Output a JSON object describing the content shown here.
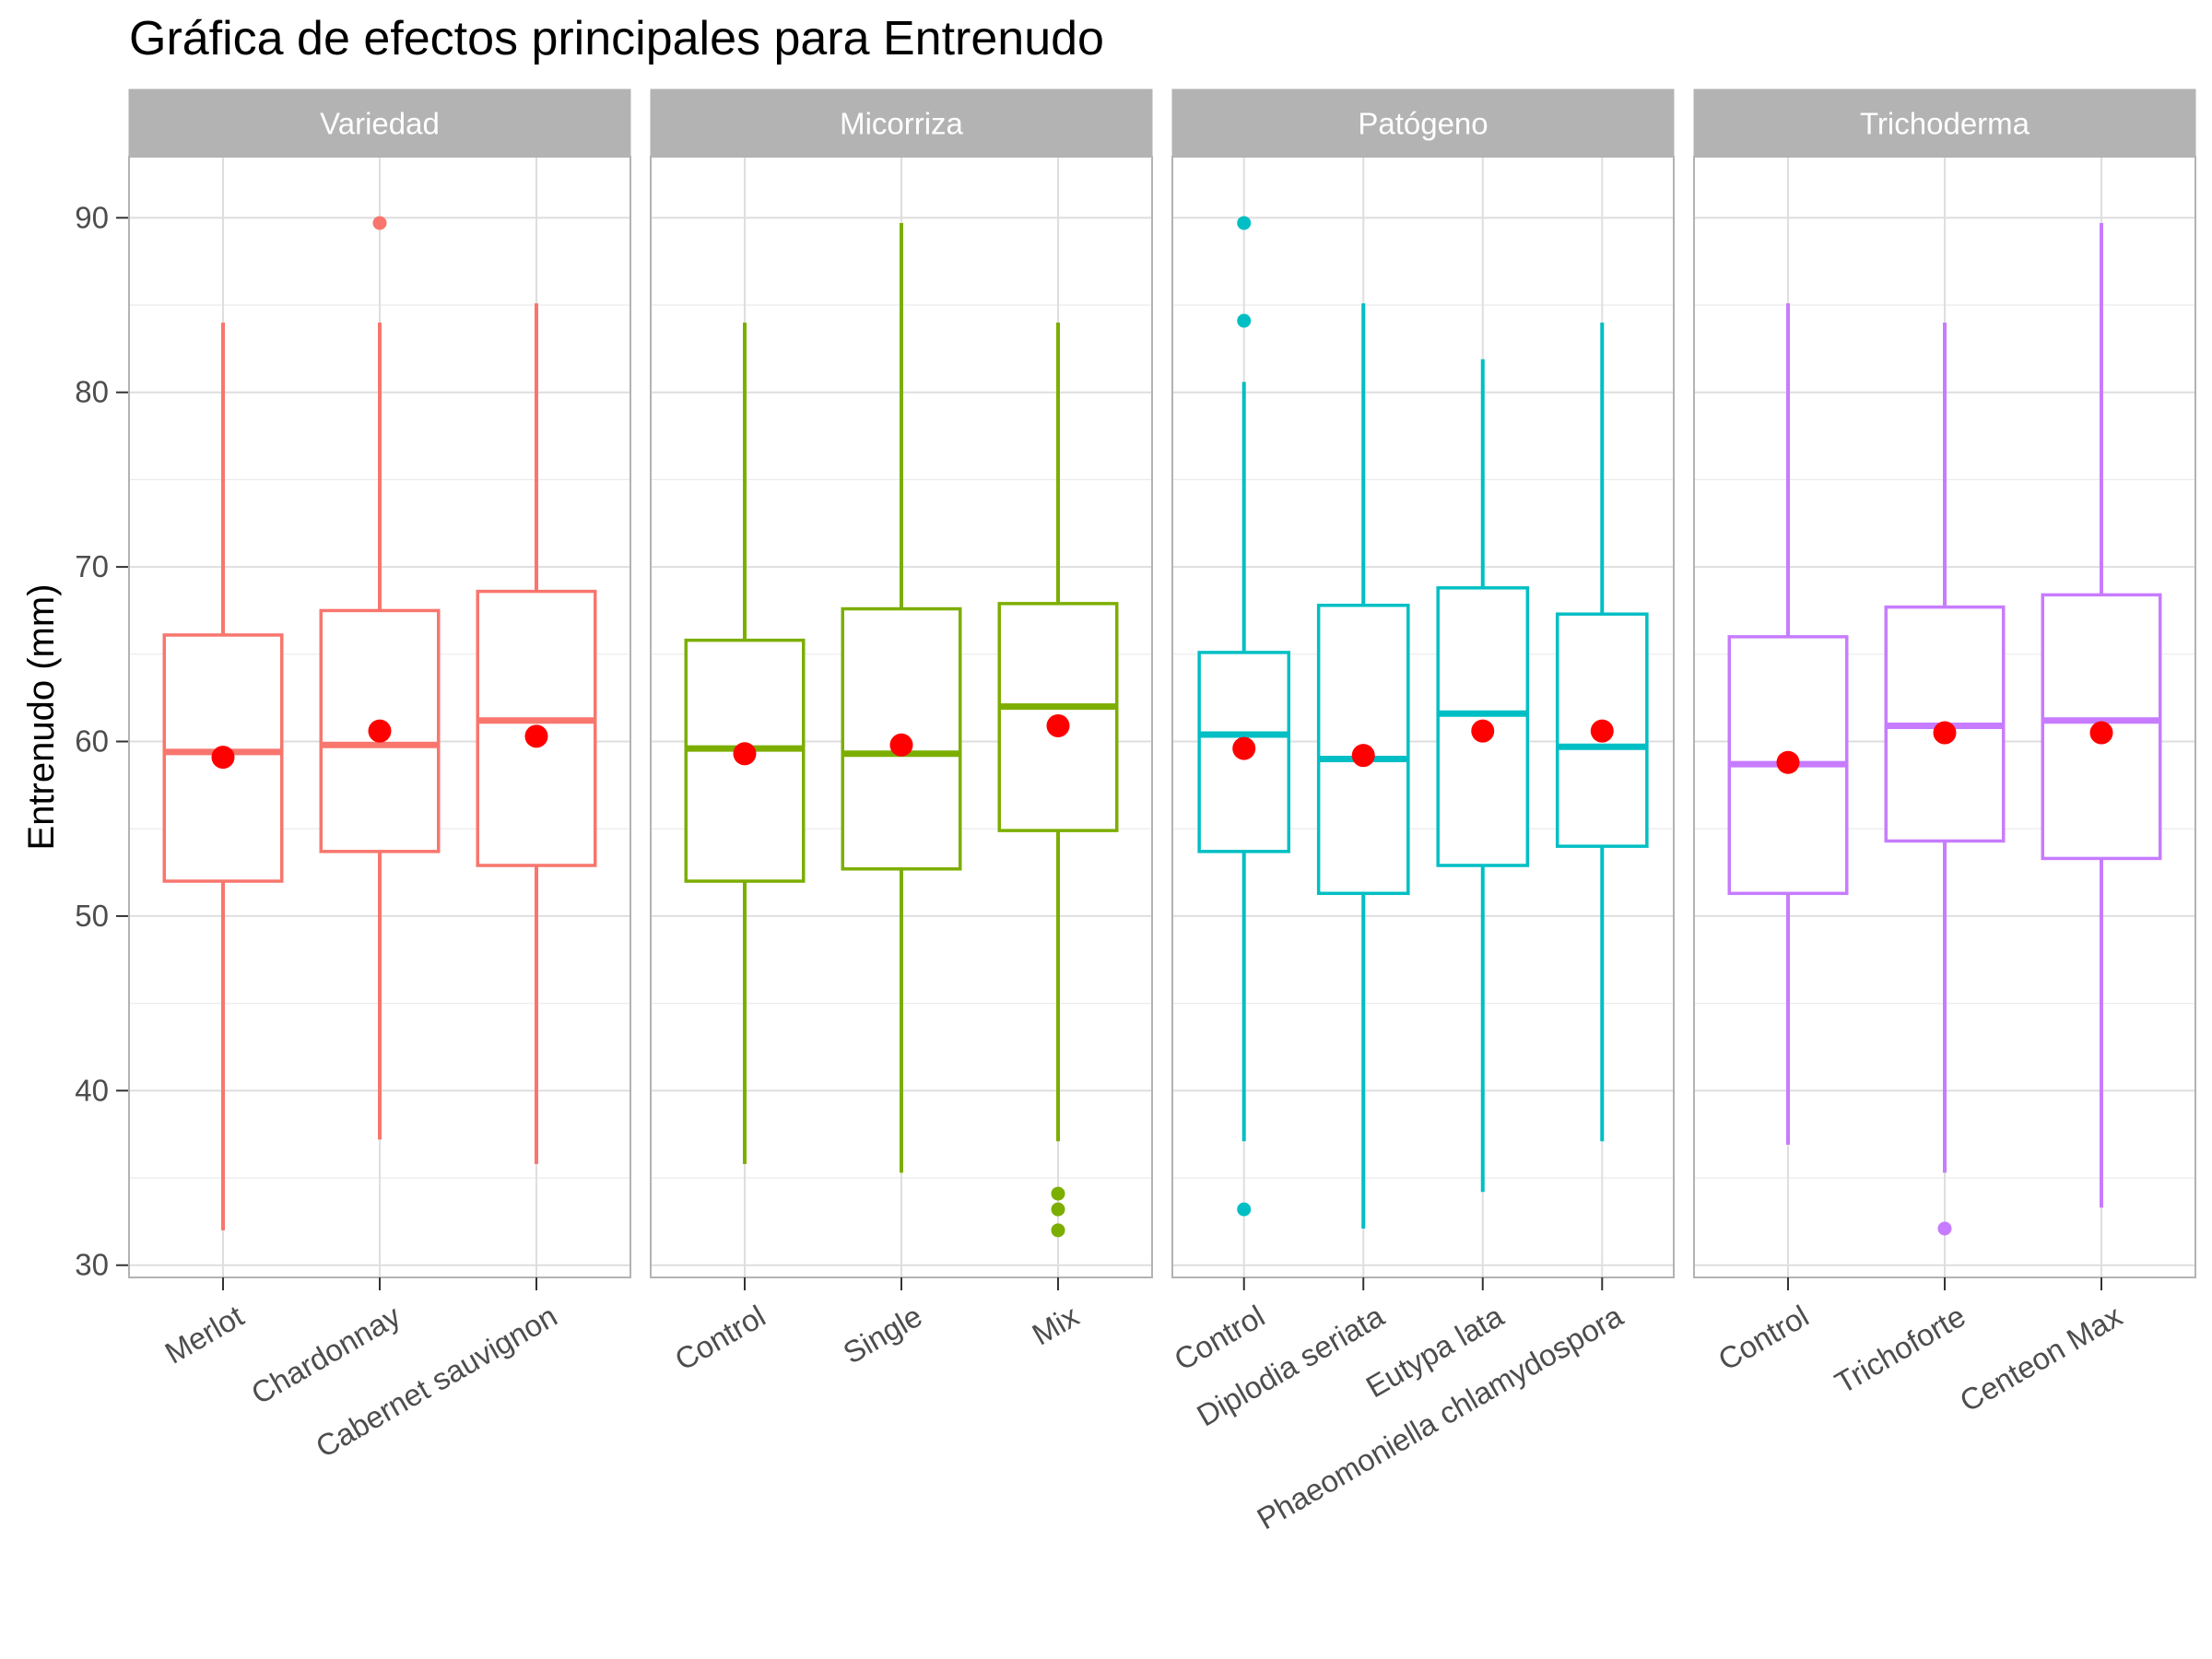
{
  "chart_data": {
    "type": "boxplot",
    "title": "Gráfica de efectos principales para Entrenudo",
    "ylabel": "Entrenudo (mm)",
    "xlabel": "",
    "ylim": [
      29.3,
      93.5
    ],
    "yticks": [
      30,
      40,
      50,
      60,
      70,
      80,
      90
    ],
    "grid": true,
    "mean_marker_color": "#ff0000",
    "panels": [
      {
        "name": "Variedad",
        "color": "#f8766d",
        "categories": [
          "Merlot",
          "Chardonnay",
          "Cabernet sauvignon"
        ],
        "boxes": [
          {
            "whisker_low": 32.0,
            "q1": 52.0,
            "median": 59.4,
            "q3": 66.1,
            "whisker_high": 84.0,
            "mean": 59.1,
            "outliers": []
          },
          {
            "whisker_low": 37.2,
            "q1": 53.7,
            "median": 59.8,
            "q3": 67.5,
            "whisker_high": 84.0,
            "mean": 60.6,
            "outliers": [
              89.7
            ]
          },
          {
            "whisker_low": 35.8,
            "q1": 52.9,
            "median": 61.2,
            "q3": 68.6,
            "whisker_high": 85.1,
            "mean": 60.3,
            "outliers": []
          }
        ]
      },
      {
        "name": "Micorriza",
        "color": "#7cae00",
        "categories": [
          "Control",
          "Single",
          "Mix"
        ],
        "boxes": [
          {
            "whisker_low": 35.8,
            "q1": 52.0,
            "median": 59.6,
            "q3": 65.8,
            "whisker_high": 84.0,
            "mean": 59.3,
            "outliers": []
          },
          {
            "whisker_low": 35.3,
            "q1": 52.7,
            "median": 59.3,
            "q3": 67.6,
            "whisker_high": 89.7,
            "mean": 59.8,
            "outliers": []
          },
          {
            "whisker_low": 37.1,
            "q1": 54.9,
            "median": 62.0,
            "q3": 67.9,
            "whisker_high": 84.0,
            "mean": 60.9,
            "outliers": [
              34.1,
              33.2,
              32.0
            ]
          }
        ]
      },
      {
        "name": "Patógeno",
        "color": "#00bfc4",
        "categories": [
          "Control",
          "Diplodia seriata",
          "Eutypa lata",
          "Phaeomoniella chlamydospora"
        ],
        "boxes": [
          {
            "whisker_low": 37.1,
            "q1": 53.7,
            "median": 60.4,
            "q3": 65.1,
            "whisker_high": 80.6,
            "mean": 59.6,
            "outliers": [
              89.7,
              84.1,
              33.2
            ]
          },
          {
            "whisker_low": 32.1,
            "q1": 51.3,
            "median": 59.0,
            "q3": 67.8,
            "whisker_high": 85.1,
            "mean": 59.2,
            "outliers": []
          },
          {
            "whisker_low": 34.2,
            "q1": 52.9,
            "median": 61.6,
            "q3": 68.8,
            "whisker_high": 81.9,
            "mean": 60.6,
            "outliers": []
          },
          {
            "whisker_low": 37.1,
            "q1": 54.0,
            "median": 59.7,
            "q3": 67.3,
            "whisker_high": 84.0,
            "mean": 60.6,
            "outliers": []
          }
        ]
      },
      {
        "name": "Trichoderma",
        "color": "#c77cff",
        "categories": [
          "Control",
          "Trichoforte",
          "Centeon Max"
        ],
        "boxes": [
          {
            "whisker_low": 36.9,
            "q1": 51.3,
            "median": 58.7,
            "q3": 66.0,
            "whisker_high": 85.1,
            "mean": 58.8,
            "outliers": []
          },
          {
            "whisker_low": 35.3,
            "q1": 54.3,
            "median": 60.9,
            "q3": 67.7,
            "whisker_high": 84.0,
            "mean": 60.5,
            "outliers": [
              32.1
            ]
          },
          {
            "whisker_low": 33.3,
            "q1": 53.3,
            "median": 61.2,
            "q3": 68.4,
            "whisker_high": 89.7,
            "mean": 60.5,
            "outliers": []
          }
        ]
      }
    ]
  }
}
